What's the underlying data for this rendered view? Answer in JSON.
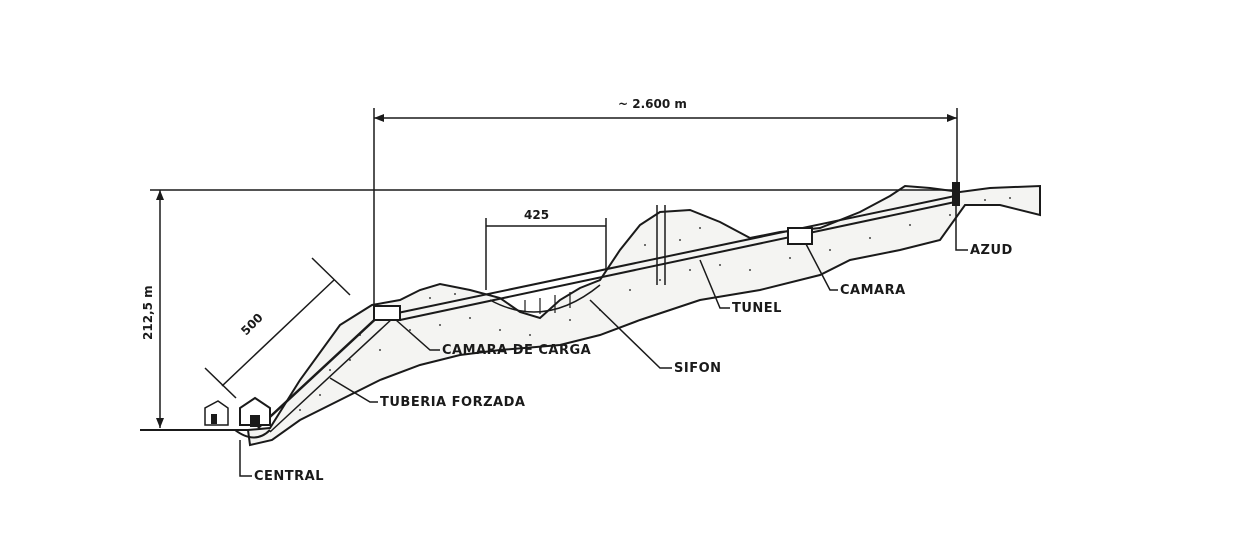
{
  "dimensions": {
    "length": "~ 2.600 m",
    "height": "212,5 m",
    "penstock": "500",
    "siphon": "425"
  },
  "labels": {
    "azud": "AZUD",
    "camara": "CAMARA",
    "tunel": "TUNEL",
    "sifon": "SIFON",
    "camara_de_carga": "CAMARA DE CARGA",
    "tuberia_forzada": "TUBERIA FORZADA",
    "central": "CENTRAL"
  },
  "colors": {
    "ink": "#1a1a1a",
    "terrain_fill": "#f4f4f2"
  }
}
